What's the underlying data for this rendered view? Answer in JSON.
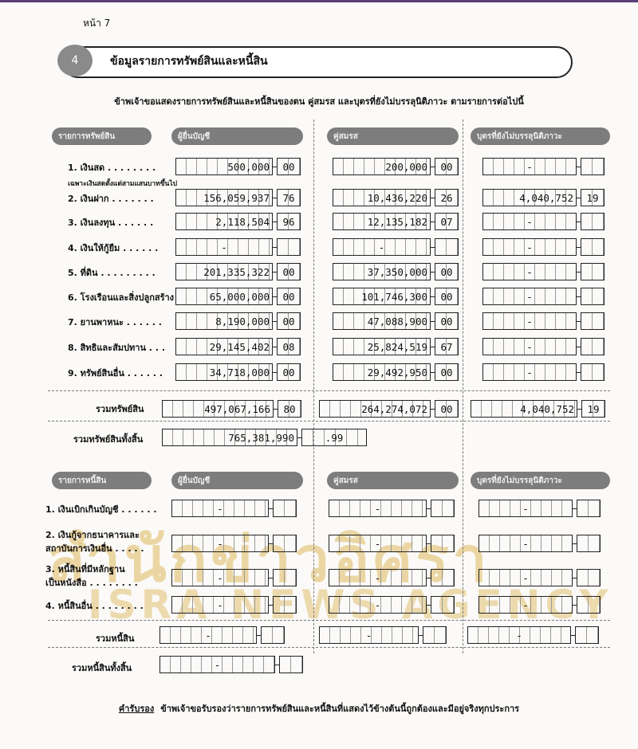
{
  "page": {
    "number_label": "หน้า 7"
  },
  "section": {
    "number": "4",
    "title": "ข้อมูลรายการทรัพย์สินและหนี้สิน"
  },
  "intro": "ข้าพเจ้าขอแสดงรายการทรัพย์สินและหนี้สินของตน คู่สมรส และบุตรที่ยังไม่บรรลุนิติภาวะ ตามรายการต่อไปนี้",
  "assets": {
    "headers": [
      "รายการทรัพย์สิน",
      "ผู้ยื่นบัญชี",
      "คู่สมรส",
      "บุตรที่ยังไม่บรรลุนิติภาวะ"
    ],
    "cash_note": "เฉพาะเงินสดตั้งแต่สามแสนบาทขึ้นไป",
    "rows": [
      {
        "label": "1. เงินสด . . . . . . . .",
        "declarant": [
          "500,000",
          "00"
        ],
        "spouse": [
          "200,000",
          "00"
        ],
        "child": [
          "-",
          ""
        ]
      },
      {
        "label": "2. เงินฝาก . . . . . . .",
        "declarant": [
          "156,059,937",
          "76"
        ],
        "spouse": [
          "10,436,220",
          "26"
        ],
        "child": [
          "4,040,752",
          "19"
        ]
      },
      {
        "label": "3. เงินลงทุน . . . . . .",
        "declarant": [
          "2,118,504",
          "96"
        ],
        "spouse": [
          "12,135,182",
          "07"
        ],
        "child": [
          "-",
          ""
        ]
      },
      {
        "label": "4. เงินให้กู้ยืม . . . . . .",
        "declarant": [
          "-",
          ""
        ],
        "spouse": [
          "-",
          ""
        ],
        "child": [
          "-",
          ""
        ]
      },
      {
        "label": "5. ที่ดิน . . . . . . . . .",
        "declarant": [
          "201,335,322",
          "00"
        ],
        "spouse": [
          "37,350,000",
          "00"
        ],
        "child": [
          "-",
          ""
        ]
      },
      {
        "label": "6. โรงเรือนและสิ่งปลูกสร้าง",
        "declarant": [
          "65,000,000",
          "00"
        ],
        "spouse": [
          "101,746,300",
          "00"
        ],
        "child": [
          "-",
          ""
        ]
      },
      {
        "label": "7. ยานพาหนะ . . . . . .",
        "declarant": [
          "8,190,000",
          "00"
        ],
        "spouse": [
          "47,088,900",
          "00"
        ],
        "child": [
          "-",
          ""
        ]
      },
      {
        "label": "8. สิทธิและสัมปทาน . . .",
        "declarant": [
          "29,145,402",
          "08"
        ],
        "spouse": [
          "25,824,519",
          "67"
        ],
        "child": [
          "-",
          ""
        ]
      },
      {
        "label": "9. ทรัพย์สินอื่น . . . . . .",
        "declarant": [
          "34,718,000",
          "00"
        ],
        "spouse": [
          "29,492,950",
          "00"
        ],
        "child": [
          "-",
          ""
        ]
      }
    ],
    "total_label": "รวมทรัพย์สิน",
    "total": {
      "declarant": [
        "497,067,166",
        "80"
      ],
      "spouse": [
        "264,274,072",
        "00"
      ],
      "child": [
        "4,040,752",
        "19"
      ]
    },
    "grand_total_label": "รวมทรัพย์สินทั้งสิ้น",
    "grand_total": [
      "765,381,990",
      ".99"
    ]
  },
  "liabilities": {
    "headers": [
      "รายการหนี้สิน",
      "ผู้ยื่นบัญชี",
      "คู่สมรส",
      "บุตรที่ยังไม่บรรลุนิติภาวะ"
    ],
    "rows": [
      {
        "label": "1. เงินเบิกเกินบัญชี . . . . . .",
        "declarant": [
          "-",
          ""
        ],
        "spouse": [
          "-",
          ""
        ],
        "child": [
          "-",
          ""
        ]
      },
      {
        "label": "2. เงินกู้จากธนาคารและ\nสถาบันการเงินอื่น . . . . .",
        "declarant": [
          "-",
          ""
        ],
        "spouse": [
          "-",
          ""
        ],
        "child": [
          "-",
          ""
        ]
      },
      {
        "label": "3. หนี้สินที่มีหลักฐาน\nเป็นหนังสือ . . . . . . . .",
        "declarant": [
          "-",
          ""
        ],
        "spouse": [
          "-",
          ""
        ],
        "child": [
          "-",
          ""
        ]
      },
      {
        "label": "4. หนี้สินอื่น . . . . . . . .",
        "declarant": [
          "-",
          ""
        ],
        "spouse": [
          "-",
          ""
        ],
        "child": [
          "-",
          ""
        ]
      }
    ],
    "total_label": "รวมหนี้สิน",
    "total": {
      "declarant": [
        "-",
        ""
      ],
      "spouse": [
        "-",
        ""
      ],
      "child": [
        "-",
        ""
      ]
    },
    "grand_total_label": "รวมหนี้สินทั้งสิ้น",
    "grand_total": [
      "-",
      ""
    ]
  },
  "certification": {
    "heading": "คำรับรอง",
    "text": "ข้าพเจ้าขอรับรองว่ารายการทรัพย์สินและหนี้สินที่แสดงไว้ข้างต้นนี้ถูกต้องและมีอยู่จริงทุกประการ"
  },
  "watermark": {
    "thai": "สำนักข่าวอิศรา",
    "english": "ISRA NEWS AGENCY"
  },
  "colors": {
    "header_pill": "#7d7d7d",
    "watermark": "#d6aa3c"
  }
}
